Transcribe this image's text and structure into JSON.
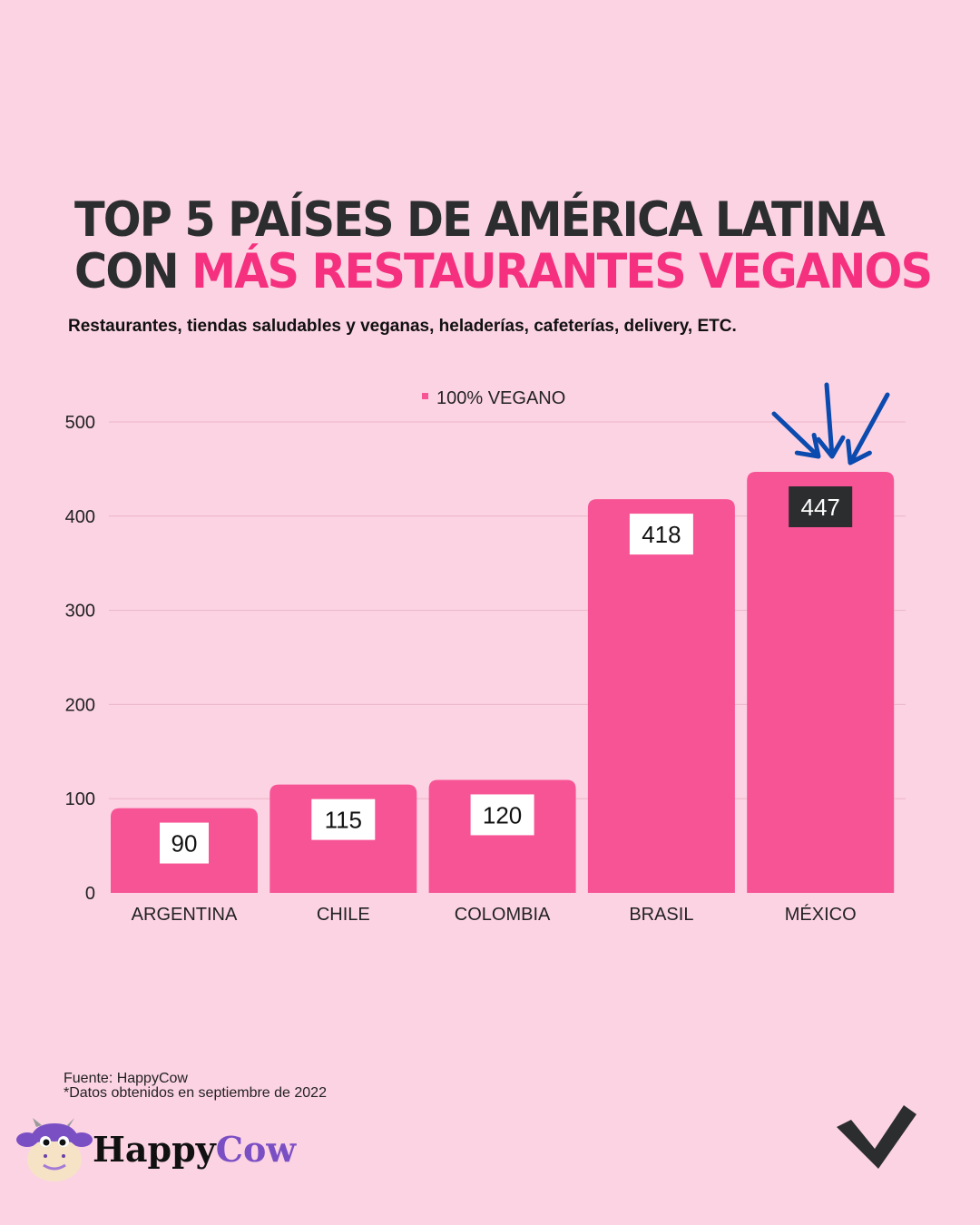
{
  "title": {
    "line1_dark": "TOP 5",
    "line1_rest": "PAÍSES DE AMÉRICA LATINA",
    "line2_dark": "CON",
    "line2_pink": "MÁS RESTAURANTES VEGANOS"
  },
  "subtitle": "Restaurantes, tiendas saludables y veganas, heladerías, cafeterías, delivery, ETC.",
  "colors": {
    "background": "#fcd3e3",
    "bar": "#f75495",
    "accent": "#f5317f",
    "arrow": "#0b4aae",
    "highlight_label": "#2b2d2f"
  },
  "chart_data": {
    "type": "bar",
    "categories": [
      "ARGENTINA",
      "CHILE",
      "COLOMBIA",
      "BRASIL",
      "MÉXICO"
    ],
    "series": [
      {
        "name": "100% VEGANO",
        "values": [
          90,
          115,
          120,
          418,
          447
        ]
      }
    ],
    "data_labels": [
      "90",
      "115",
      "120",
      "418",
      "447"
    ],
    "highlighted_category": "MÉXICO",
    "ylim": [
      0,
      500
    ],
    "yticks": [
      0,
      100,
      200,
      300,
      400,
      500
    ],
    "grid": true,
    "legend": "top-center",
    "xlabel": "",
    "ylabel": ""
  },
  "footer": {
    "source": "Fuente: HappyCow",
    "note": "*Datos obtenidos en septiembre de 2022",
    "logo_part1": "Happy",
    "logo_part2": "Cow"
  }
}
